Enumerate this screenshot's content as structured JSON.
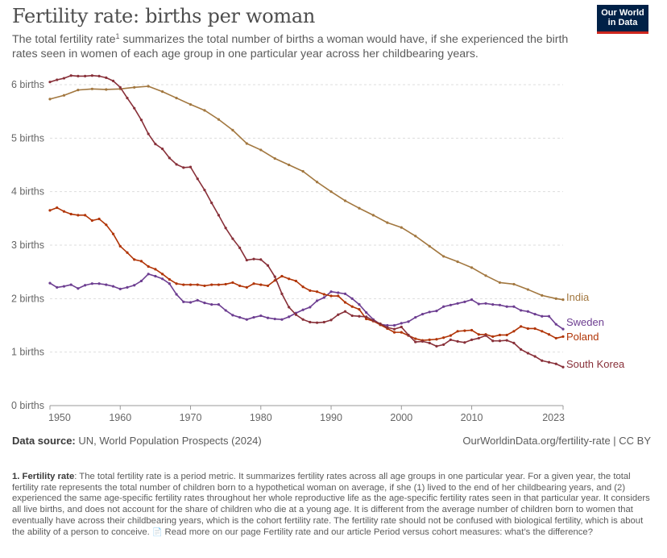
{
  "header": {
    "title": "Fertility rate: births per woman",
    "subtitle_before": "The total fertility rate",
    "subtitle_sup": "1",
    "subtitle_after": " summarizes the total number of births a woman would have, if she experienced the birth rates seen in women of each age group in one particular year across her childbearing years."
  },
  "logo": {
    "line1": "Our World",
    "line2": "in Data",
    "bg_color": "#002147",
    "accent_color": "#ce261e"
  },
  "footer": {
    "source_label": "Data source:",
    "source_text": " UN, World Population Prospects (2024)",
    "url_text": "OurWorldinData.org/fertility-rate | CC BY"
  },
  "note": {
    "label": "1. Fertility rate",
    "text": ": The total fertility rate is a period metric. It summarizes fertility rates across all age groups in one particular year. For a given year, the total fertility rate represents the total number of children born to a hypothetical woman on average, if she (1) lived to the end of her childbearing years, and (2) experienced the same age-specific fertility rates throughout her whole reproductive life as the age-specific fertility rates seen in that particular year. It considers all live births, and does not account for the share of children who die at a young age. It is different from the average number of children born to women that eventually have across their childbearing years, which is the cohort fertility rate. The fertility rate should not be confused with biological fertility, which is about the ability of a person to conceive.",
    "icon": "document-icon",
    "read_more": " Read more on our page Fertility rate and our article Period versus cohort measures: what’s the difference?"
  },
  "chart_data": {
    "type": "line",
    "title": "Fertility rate: births per woman",
    "xlabel": "",
    "ylabel": "",
    "xlim": [
      1950,
      2023
    ],
    "ylim": [
      0,
      6
    ],
    "x_ticks": [
      1950,
      1960,
      1970,
      1980,
      1990,
      2000,
      2010,
      2023
    ],
    "y_ticks": [
      {
        "value": 0,
        "label": "0 births"
      },
      {
        "value": 1,
        "label": "1 births"
      },
      {
        "value": 2,
        "label": "2 births"
      },
      {
        "value": 3,
        "label": "3 births"
      },
      {
        "value": 4,
        "label": "4 births"
      },
      {
        "value": 5,
        "label": "5 births"
      },
      {
        "value": 6,
        "label": "6 births"
      }
    ],
    "grid": true,
    "series": [
      {
        "name": "India",
        "color": "#a2773f",
        "x": [
          1950,
          1952,
          1954,
          1956,
          1958,
          1960,
          1962,
          1964,
          1966,
          1968,
          1970,
          1972,
          1974,
          1976,
          1978,
          1980,
          1982,
          1984,
          1986,
          1988,
          1990,
          1992,
          1994,
          1996,
          1998,
          2000,
          2002,
          2004,
          2006,
          2008,
          2010,
          2012,
          2014,
          2016,
          2018,
          2020,
          2022,
          2023
        ],
        "values": [
          5.73,
          5.8,
          5.9,
          5.92,
          5.91,
          5.92,
          5.95,
          5.97,
          5.87,
          5.75,
          5.63,
          5.52,
          5.35,
          5.15,
          4.9,
          4.78,
          4.62,
          4.5,
          4.38,
          4.18,
          4.0,
          3.83,
          3.69,
          3.56,
          3.42,
          3.33,
          3.17,
          2.98,
          2.79,
          2.69,
          2.58,
          2.43,
          2.3,
          2.27,
          2.17,
          2.06,
          2.0,
          1.98
        ]
      },
      {
        "name": "Sweden",
        "color": "#6d3e91",
        "x": [
          1950,
          1951,
          1952,
          1953,
          1954,
          1955,
          1956,
          1957,
          1958,
          1959,
          1960,
          1961,
          1962,
          1963,
          1964,
          1965,
          1966,
          1967,
          1968,
          1969,
          1970,
          1971,
          1972,
          1973,
          1974,
          1975,
          1976,
          1977,
          1978,
          1979,
          1980,
          1981,
          1982,
          1983,
          1984,
          1985,
          1986,
          1987,
          1988,
          1989,
          1990,
          1991,
          1992,
          1993,
          1994,
          1995,
          1996,
          1997,
          1998,
          1999,
          2000,
          2001,
          2002,
          2003,
          2004,
          2005,
          2006,
          2007,
          2008,
          2009,
          2010,
          2011,
          2012,
          2013,
          2014,
          2015,
          2016,
          2017,
          2018,
          2019,
          2020,
          2021,
          2022,
          2023
        ],
        "values": [
          2.29,
          2.21,
          2.23,
          2.26,
          2.19,
          2.25,
          2.28,
          2.28,
          2.26,
          2.23,
          2.18,
          2.21,
          2.25,
          2.33,
          2.46,
          2.42,
          2.37,
          2.28,
          2.08,
          1.94,
          1.93,
          1.97,
          1.92,
          1.89,
          1.89,
          1.78,
          1.69,
          1.65,
          1.61,
          1.65,
          1.68,
          1.64,
          1.62,
          1.61,
          1.66,
          1.73,
          1.79,
          1.84,
          1.96,
          2.02,
          2.13,
          2.11,
          2.09,
          2.0,
          1.89,
          1.74,
          1.61,
          1.52,
          1.5,
          1.5,
          1.54,
          1.57,
          1.65,
          1.71,
          1.75,
          1.77,
          1.85,
          1.88,
          1.91,
          1.94,
          1.98,
          1.9,
          1.91,
          1.89,
          1.88,
          1.85,
          1.85,
          1.78,
          1.76,
          1.71,
          1.67,
          1.67,
          1.52,
          1.43
        ]
      },
      {
        "name": "Poland",
        "color": "#b13507",
        "x": [
          1950,
          1951,
          1952,
          1953,
          1954,
          1955,
          1956,
          1957,
          1958,
          1959,
          1960,
          1961,
          1962,
          1963,
          1964,
          1965,
          1966,
          1967,
          1968,
          1969,
          1970,
          1971,
          1972,
          1973,
          1974,
          1975,
          1976,
          1977,
          1978,
          1979,
          1980,
          1981,
          1982,
          1983,
          1984,
          1985,
          1986,
          1987,
          1988,
          1989,
          1990,
          1991,
          1992,
          1993,
          1994,
          1995,
          1996,
          1997,
          1998,
          1999,
          2000,
          2001,
          2002,
          2003,
          2004,
          2005,
          2006,
          2007,
          2008,
          2009,
          2010,
          2011,
          2012,
          2013,
          2014,
          2015,
          2016,
          2017,
          2018,
          2019,
          2020,
          2021,
          2022,
          2023
        ],
        "values": [
          3.65,
          3.7,
          3.63,
          3.58,
          3.56,
          3.56,
          3.46,
          3.49,
          3.38,
          3.21,
          2.98,
          2.86,
          2.73,
          2.7,
          2.6,
          2.55,
          2.46,
          2.36,
          2.28,
          2.26,
          2.26,
          2.26,
          2.24,
          2.26,
          2.26,
          2.27,
          2.3,
          2.24,
          2.21,
          2.28,
          2.26,
          2.24,
          2.34,
          2.42,
          2.37,
          2.33,
          2.22,
          2.15,
          2.13,
          2.08,
          2.05,
          2.05,
          1.93,
          1.85,
          1.8,
          1.62,
          1.58,
          1.51,
          1.44,
          1.37,
          1.37,
          1.31,
          1.25,
          1.22,
          1.23,
          1.24,
          1.27,
          1.31,
          1.39,
          1.4,
          1.41,
          1.33,
          1.33,
          1.29,
          1.32,
          1.32,
          1.39,
          1.48,
          1.44,
          1.44,
          1.39,
          1.33,
          1.26,
          1.29
        ]
      },
      {
        "name": "South Korea",
        "color": "#883039",
        "x": [
          1950,
          1951,
          1952,
          1953,
          1954,
          1955,
          1956,
          1957,
          1958,
          1959,
          1960,
          1961,
          1962,
          1963,
          1964,
          1965,
          1966,
          1967,
          1968,
          1969,
          1970,
          1971,
          1972,
          1973,
          1974,
          1975,
          1976,
          1977,
          1978,
          1979,
          1980,
          1981,
          1982,
          1983,
          1984,
          1985,
          1986,
          1987,
          1988,
          1989,
          1990,
          1991,
          1992,
          1993,
          1994,
          1995,
          1996,
          1997,
          1998,
          1999,
          2000,
          2001,
          2002,
          2003,
          2004,
          2005,
          2006,
          2007,
          2008,
          2009,
          2010,
          2011,
          2012,
          2013,
          2014,
          2015,
          2016,
          2017,
          2018,
          2019,
          2020,
          2021,
          2022,
          2023
        ],
        "values": [
          6.05,
          6.09,
          6.12,
          6.17,
          6.16,
          6.16,
          6.17,
          6.16,
          6.13,
          6.07,
          5.95,
          5.75,
          5.56,
          5.34,
          5.08,
          4.89,
          4.8,
          4.63,
          4.51,
          4.45,
          4.46,
          4.24,
          4.03,
          3.79,
          3.56,
          3.32,
          3.12,
          2.95,
          2.72,
          2.74,
          2.73,
          2.62,
          2.41,
          2.09,
          1.84,
          1.7,
          1.61,
          1.56,
          1.55,
          1.56,
          1.6,
          1.7,
          1.76,
          1.68,
          1.67,
          1.66,
          1.59,
          1.53,
          1.46,
          1.43,
          1.47,
          1.32,
          1.19,
          1.2,
          1.17,
          1.11,
          1.14,
          1.23,
          1.2,
          1.18,
          1.23,
          1.26,
          1.31,
          1.21,
          1.21,
          1.22,
          1.17,
          1.05,
          0.98,
          0.92,
          0.84,
          0.81,
          0.78,
          0.72
        ]
      }
    ]
  }
}
